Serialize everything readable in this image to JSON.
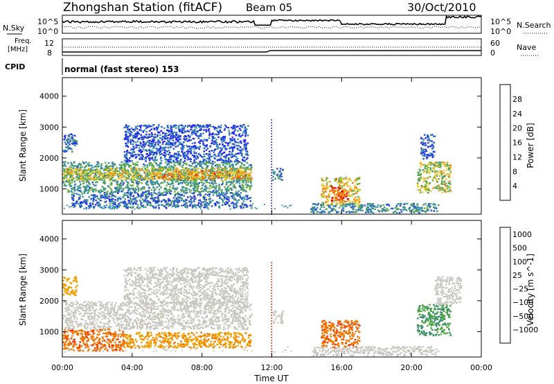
{
  "header": {
    "station": "Zhongshan Station (fitACF)",
    "beam": "Beam 05",
    "date": "30/Oct/2010"
  },
  "top_panels": {
    "nsky_label": "N.Sky",
    "nsearch_label": "N.Search",
    "power_ticks": [
      "10^5",
      "10^0"
    ],
    "freq_label_line1": "Freq.",
    "freq_label_line2": "[MHz]",
    "freq_ticks": [
      "12",
      "8"
    ],
    "nave_label": "Nave",
    "nave_ticks": [
      "60",
      "0"
    ],
    "cpid_label": "CPID",
    "cpid_text": "normal (fast stereo) 153"
  },
  "chart_data": [
    {
      "type": "heatmap",
      "title": "",
      "xlabel": "Time UT",
      "ylabel": "Slant Range [km]",
      "x_ticks": [
        "00:00",
        "04:00",
        "08:00",
        "12:00",
        "16:00",
        "20:00",
        "00:00"
      ],
      "xlim_hours": [
        0,
        24
      ],
      "y_ticks": [
        1000,
        2000,
        3000,
        4000
      ],
      "ylim": [
        180,
        4600
      ],
      "colorbar_label": "Power [dB]",
      "colorbar_ticks": [
        4,
        8,
        12,
        16,
        20,
        24,
        28
      ],
      "colorbar_colors": [
        "#2323f5",
        "#2a55c8",
        "#3a8fb0",
        "#4a9a6e",
        "#6ab040",
        "#e8d030",
        "#f0a020",
        "#f07010",
        "#e83010",
        "#e00000"
      ],
      "clusters": [
        {
          "t0": 0.0,
          "t1": 10.8,
          "r0": 900,
          "r1": 1900,
          "value": 12
        },
        {
          "t0": 0.0,
          "t1": 10.8,
          "r0": 1300,
          "r1": 1700,
          "value": 18
        },
        {
          "t0": 5.0,
          "t1": 10.5,
          "r0": 1350,
          "r1": 1600,
          "value": 22
        },
        {
          "t0": 0.0,
          "t1": 0.8,
          "r0": 2200,
          "r1": 2800,
          "value": 8
        },
        {
          "t0": 3.5,
          "t1": 10.6,
          "r0": 1900,
          "r1": 3100,
          "value": 6
        },
        {
          "t0": 0.5,
          "t1": 10.8,
          "r0": 400,
          "r1": 900,
          "value": 8
        },
        {
          "t0": 12.0,
          "t1": 12.6,
          "r0": 1300,
          "r1": 1700,
          "value": 10
        },
        {
          "t0": 14.8,
          "t1": 17.0,
          "r0": 500,
          "r1": 1400,
          "value": 20
        },
        {
          "t0": 15.3,
          "t1": 16.3,
          "r0": 650,
          "r1": 1100,
          "value": 27
        },
        {
          "t0": 14.2,
          "t1": 21.5,
          "r0": 250,
          "r1": 550,
          "value": 10
        },
        {
          "t0": 20.3,
          "t1": 22.2,
          "r0": 900,
          "r1": 1900,
          "value": 17
        },
        {
          "t0": 20.5,
          "t1": 21.3,
          "r0": 2000,
          "r1": 2800,
          "value": 7
        }
      ]
    },
    {
      "type": "heatmap",
      "title": "",
      "xlabel": "Time UT",
      "ylabel": "Slant Range [km]",
      "x_ticks": [
        "00:00",
        "04:00",
        "08:00",
        "12:00",
        "16:00",
        "20:00",
        "00:00"
      ],
      "xlim_hours": [
        0,
        24
      ],
      "y_ticks": [
        1000,
        2000,
        3000,
        4000
      ],
      "ylim": [
        180,
        4600
      ],
      "colorbar_label": "Velocity [m s^-1]",
      "colorbar_ticks": [
        "1000",
        "500",
        "100",
        "25",
        "−25",
        "−100",
        "−500",
        "−1000"
      ],
      "colorbar_colors": [
        "#2040c0",
        "#2a6aa8",
        "#3a8a70",
        "#55aa40",
        "#c8c8c0",
        "#c8c8c0",
        "#f0a000",
        "#f07800",
        "#f03000",
        "#e00000"
      ],
      "clusters": [
        {
          "t0": 0.0,
          "t1": 10.8,
          "r0": 1100,
          "r1": 2000,
          "value": 0
        },
        {
          "t0": 0.0,
          "t1": 3.5,
          "r0": 400,
          "r1": 1100,
          "value": -200
        },
        {
          "t0": 3.5,
          "t1": 10.8,
          "r0": 500,
          "r1": 1000,
          "value": -80
        },
        {
          "t0": 3.5,
          "t1": 10.6,
          "r0": 1900,
          "r1": 3100,
          "value": 0
        },
        {
          "t0": 0.0,
          "t1": 0.8,
          "r0": 2200,
          "r1": 2800,
          "value": -60
        },
        {
          "t0": 14.8,
          "t1": 17.0,
          "r0": 500,
          "r1": 1400,
          "value": -200
        },
        {
          "t0": 12.0,
          "t1": 12.6,
          "r0": 1300,
          "r1": 1700,
          "value": 0
        },
        {
          "t0": 14.2,
          "t1": 21.5,
          "r0": 250,
          "r1": 550,
          "value": 60
        },
        {
          "t0": 20.3,
          "t1": 22.2,
          "r0": 900,
          "r1": 1900,
          "value": 250
        },
        {
          "t0": 21.3,
          "t1": 22.8,
          "r0": 1900,
          "r1": 2800,
          "value": 0
        }
      ]
    }
  ]
}
